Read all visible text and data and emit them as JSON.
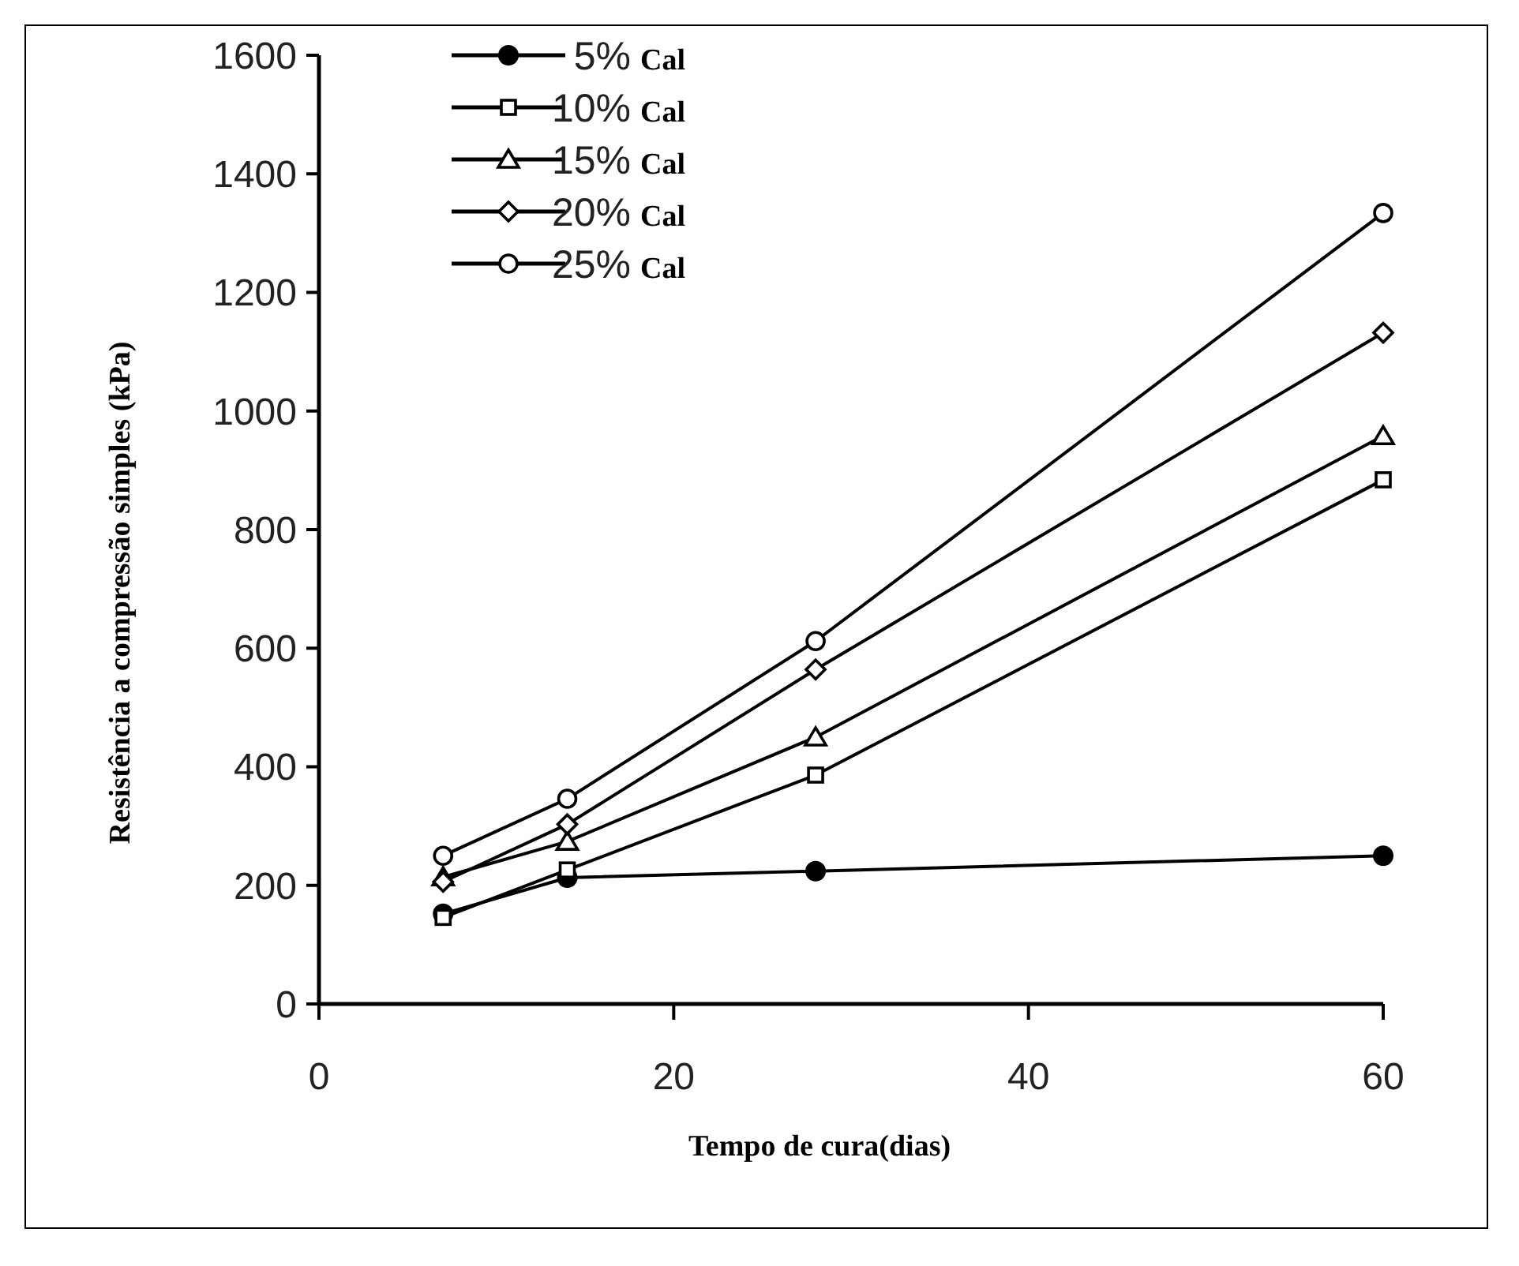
{
  "chart_data": {
    "type": "line",
    "xlabel": "Tempo de cura(dias)",
    "ylabel": "Resistência a compressão simples (kPa)",
    "x": [
      7,
      14,
      28,
      60
    ],
    "xlim": [
      0,
      60
    ],
    "xticks": [
      0,
      20,
      40,
      60
    ],
    "ylim": [
      0,
      1600
    ],
    "yticks": [
      0,
      200,
      400,
      600,
      800,
      1000,
      1200,
      1400,
      1600
    ],
    "grid": false,
    "legend": "top left",
    "line_style": "solid",
    "series": [
      {
        "name": "5% Cal",
        "color": "#000000",
        "marker": "circle",
        "values": [
          152,
          213,
          224,
          250
        ]
      },
      {
        "name": "10% Cal",
        "color": "#000000",
        "marker": "square",
        "values": [
          146,
          226,
          386,
          884
        ]
      },
      {
        "name": "15% Cal",
        "color": "#000000",
        "marker": "triangle",
        "values": [
          214,
          274,
          450,
          958
        ]
      },
      {
        "name": "20% Cal",
        "color": "#000000",
        "marker": "diamond",
        "values": [
          206,
          303,
          564,
          1132
        ]
      },
      {
        "name": "25% Cal",
        "color": "#000000",
        "marker": "circle-open",
        "values": [
          250,
          346,
          612,
          1334
        ]
      }
    ]
  }
}
